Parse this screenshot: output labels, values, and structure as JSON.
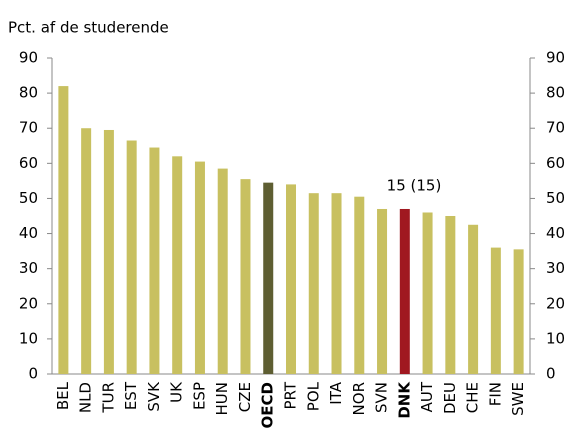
{
  "chart_data": {
    "type": "bar",
    "y_label": "Pct. af de studerende",
    "categories": [
      "BEL",
      "NLD",
      "TUR",
      "EST",
      "SVK",
      "UK",
      "ESP",
      "HUN",
      "CZE",
      "OECD",
      "PRT",
      "POL",
      "ITA",
      "NOR",
      "SVN",
      "DNK",
      "AUT",
      "DEU",
      "CHE",
      "FIN",
      "SWE"
    ],
    "values": [
      82,
      70,
      69.5,
      66.5,
      64.5,
      62,
      60.5,
      58.5,
      55.5,
      54.5,
      54,
      51.5,
      51.5,
      50.5,
      47,
      47,
      46,
      45,
      42.5,
      36,
      35.5
    ],
    "colors": [
      "#c8c060",
      "#c8c060",
      "#c8c060",
      "#c8c060",
      "#c8c060",
      "#c8c060",
      "#c8c060",
      "#c8c060",
      "#c8c060",
      "#5e5e32",
      "#c8c060",
      "#c8c060",
      "#c8c060",
      "#c8c060",
      "#c8c060",
      "#a01820",
      "#c8c060",
      "#c8c060",
      "#c8c060",
      "#c8c060",
      "#c8c060"
    ],
    "bold": [
      false,
      false,
      false,
      false,
      false,
      false,
      false,
      false,
      false,
      true,
      false,
      false,
      false,
      false,
      false,
      true,
      false,
      false,
      false,
      false,
      false
    ],
    "annotation": "15 (15)",
    "ylim": [
      0,
      90
    ],
    "yticks": [
      0,
      10,
      20,
      30,
      40,
      50,
      60,
      70,
      80,
      90
    ],
    "y2lim": [
      0,
      90
    ],
    "y2ticks": [
      0,
      10,
      20,
      30,
      40,
      50,
      60,
      70,
      80,
      90
    ],
    "grid": false
  }
}
